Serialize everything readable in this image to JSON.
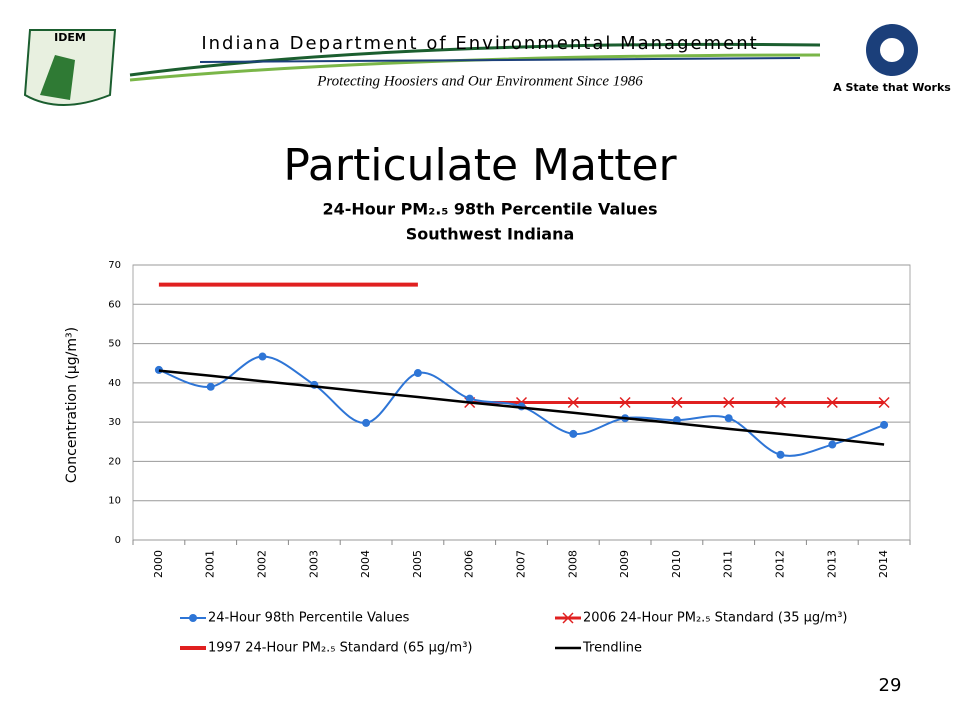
{
  "header": {
    "logo_text": "IDEM",
    "title": "Indiana Department of Environmental Management",
    "subtitle": "Protecting Hoosiers and Our Environment Since 1986",
    "state_logo_text": "A State that Works"
  },
  "slide_title": "Particulate Matter",
  "page_number": "29",
  "chart_data": {
    "type": "line",
    "title": "24-Hour PM₂.₅ 98th Percentile Values",
    "subtitle": "Southwest Indiana",
    "y_label": "Concentration (µg/m³)",
    "categories": [
      "2000",
      "2001",
      "2002",
      "2003",
      "2004",
      "2005",
      "2006",
      "2007",
      "2008",
      "2009",
      "2010",
      "2011",
      "2012",
      "2013",
      "2014"
    ],
    "ylim": [
      0,
      70
    ],
    "yticks": [
      0,
      10,
      20,
      30,
      40,
      50,
      60,
      70
    ],
    "grid": true,
    "legend": "bottom",
    "series": [
      {
        "name": "24-Hour 98th Percentile Values",
        "color": "#2e75d6",
        "marker": "circle",
        "smooth": true,
        "width": 2,
        "values": [
          43.3,
          39,
          46.7,
          39.5,
          29.8,
          42.5,
          36,
          34,
          27,
          31,
          30.5,
          31,
          21.7,
          24.3,
          29.3
        ]
      },
      {
        "name": "2006 24-Hour PM₂.₅ Standard (35 µg/m³)",
        "color": "#e02020",
        "marker": "x",
        "smooth": false,
        "width": 3,
        "values": [
          null,
          null,
          null,
          null,
          null,
          null,
          35,
          35,
          35,
          35,
          35,
          35,
          35,
          35,
          35
        ]
      },
      {
        "name": "1997 24-Hour PM₂.₅ Standard (65 µg/m³)",
        "color": "#e02020",
        "marker": "none",
        "smooth": false,
        "width": 4,
        "values": [
          65,
          65,
          65,
          65,
          65,
          65,
          null,
          null,
          null,
          null,
          null,
          null,
          null,
          null,
          null
        ]
      },
      {
        "name": "Trendline",
        "color": "#000000",
        "marker": "none",
        "smooth": false,
        "width": 2.5,
        "values": [
          43.1,
          41.8,
          40.4,
          39.1,
          37.7,
          36.4,
          35.0,
          33.7,
          32.4,
          31.0,
          29.7,
          28.3,
          27.0,
          25.7,
          24.3
        ]
      }
    ]
  }
}
